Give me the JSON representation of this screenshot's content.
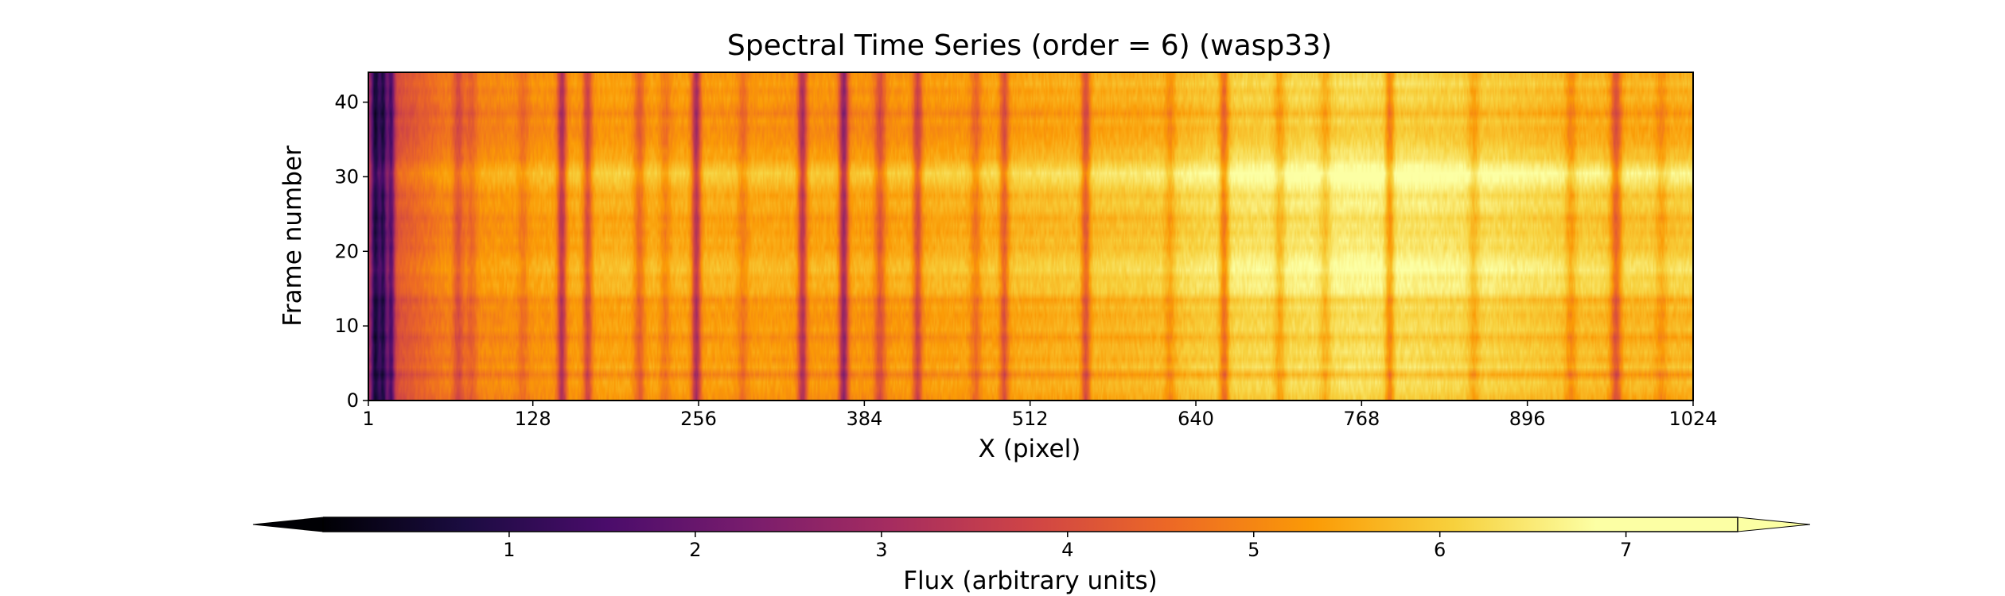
{
  "chart_data": {
    "type": "heatmap",
    "title": "Spectral Time Series (order = 6) (wasp33)",
    "xlabel": "X (pixel)",
    "ylabel": "Frame number",
    "xlim": [
      1,
      1024
    ],
    "ylim": [
      0,
      44
    ],
    "x_ticks": [
      1,
      128,
      256,
      384,
      512,
      640,
      768,
      896,
      1024
    ],
    "y_ticks": [
      0,
      10,
      20,
      30,
      40
    ],
    "colormap": "inferno",
    "colorbar": {
      "label": "Flux (arbitrary units)",
      "ticks": [
        1,
        2,
        3,
        4,
        5,
        6,
        7
      ],
      "range": [
        0,
        7.6
      ],
      "extend": "both"
    },
    "base_flux": [
      {
        "x": 1,
        "flux": 3.6
      },
      {
        "x": 64,
        "flux": 5.0
      },
      {
        "x": 192,
        "flux": 5.5
      },
      {
        "x": 384,
        "flux": 5.3
      },
      {
        "x": 512,
        "flux": 5.6
      },
      {
        "x": 608,
        "flux": 5.8
      },
      {
        "x": 670,
        "flux": 6.2
      },
      {
        "x": 768,
        "flux": 6.4
      },
      {
        "x": 860,
        "flux": 6.2
      },
      {
        "x": 960,
        "flux": 5.8
      },
      {
        "x": 1024,
        "flux": 5.8
      }
    ],
    "absorption_lines": [
      {
        "x": 6,
        "depth": 3.0,
        "width": 2.5
      },
      {
        "x": 12,
        "depth": 2.8,
        "width": 2.0
      },
      {
        "x": 18,
        "depth": 2.4,
        "width": 2.0
      },
      {
        "x": 70,
        "depth": 1.0,
        "width": 3
      },
      {
        "x": 80,
        "depth": 0.6,
        "width": 3
      },
      {
        "x": 120,
        "depth": 0.5,
        "width": 3
      },
      {
        "x": 150,
        "depth": 2.0,
        "width": 2.5
      },
      {
        "x": 170,
        "depth": 1.5,
        "width": 2.5
      },
      {
        "x": 210,
        "depth": 1.0,
        "width": 3
      },
      {
        "x": 230,
        "depth": 0.6,
        "width": 3
      },
      {
        "x": 254,
        "depth": 2.2,
        "width": 2.5
      },
      {
        "x": 290,
        "depth": 0.6,
        "width": 3
      },
      {
        "x": 336,
        "depth": 2.0,
        "width": 2.5
      },
      {
        "x": 368,
        "depth": 2.5,
        "width": 2.5
      },
      {
        "x": 396,
        "depth": 1.2,
        "width": 3
      },
      {
        "x": 425,
        "depth": 1.5,
        "width": 2.5
      },
      {
        "x": 470,
        "depth": 0.8,
        "width": 3
      },
      {
        "x": 492,
        "depth": 1.3,
        "width": 2.5
      },
      {
        "x": 555,
        "depth": 1.5,
        "width": 2.5
      },
      {
        "x": 620,
        "depth": 0.6,
        "width": 3
      },
      {
        "x": 662,
        "depth": 1.4,
        "width": 2.5
      },
      {
        "x": 705,
        "depth": 0.7,
        "width": 3
      },
      {
        "x": 740,
        "depth": 0.6,
        "width": 3
      },
      {
        "x": 790,
        "depth": 1.2,
        "width": 2.5
      },
      {
        "x": 855,
        "depth": 0.6,
        "width": 3
      },
      {
        "x": 930,
        "depth": 0.7,
        "width": 3
      },
      {
        "x": 965,
        "depth": 1.5,
        "width": 3
      },
      {
        "x": 1000,
        "depth": 0.5,
        "width": 3
      }
    ],
    "frame_offsets": [
      -0.3,
      -0.1,
      0.0,
      -0.6,
      0.1,
      -0.2,
      0.0,
      -0.1,
      -0.4,
      0.0,
      -0.1,
      -0.2,
      0.0,
      -0.3,
      0.3,
      0.4,
      0.3,
      0.6,
      0.5,
      0.3,
      0.1,
      0.2,
      0.0,
      0.1,
      -0.1,
      0.2,
      0.3,
      0.1,
      0.4,
      0.7,
      0.9,
      0.5,
      0.1,
      0.0,
      -0.2,
      -0.3,
      -0.4,
      -0.2,
      -0.6,
      -0.3,
      -0.1,
      -0.3,
      0.0,
      -0.2
    ]
  }
}
